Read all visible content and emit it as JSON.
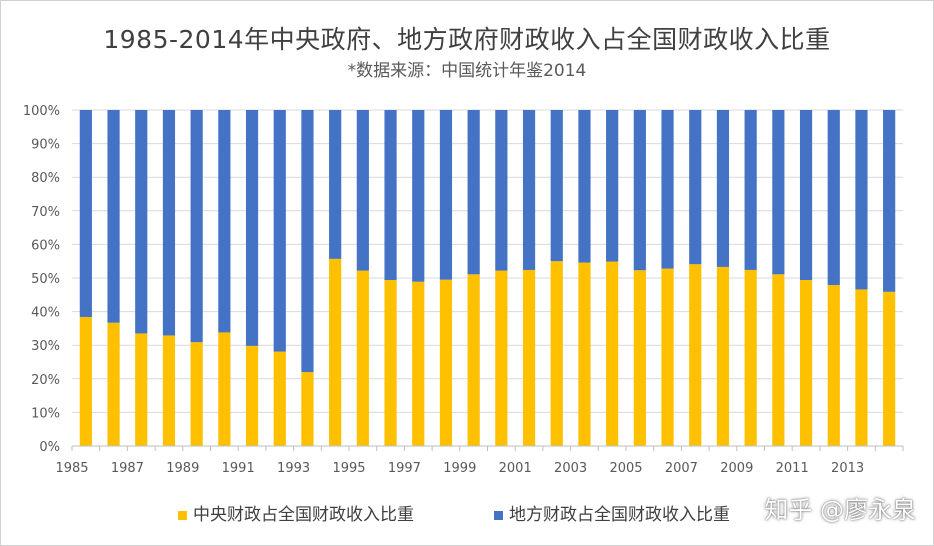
{
  "chart_data": {
    "type": "bar",
    "stacked": true,
    "title": "1985-2014年中央政府、地方政府财政收入占全国财政收入比重",
    "subtitle": "*数据来源：中国统计年鉴2014",
    "x": [
      1985,
      1986,
      1987,
      1988,
      1989,
      1990,
      1991,
      1992,
      1993,
      1994,
      1995,
      1996,
      1997,
      1998,
      1999,
      2000,
      2001,
      2002,
      2003,
      2004,
      2005,
      2006,
      2007,
      2008,
      2009,
      2010,
      2011,
      2012,
      2013,
      2014
    ],
    "x_tick_labels": [
      "1985",
      "1987",
      "1989",
      "1991",
      "1993",
      "1995",
      "1997",
      "1999",
      "2001",
      "2003",
      "2005",
      "2007",
      "2009",
      "2011",
      "2013"
    ],
    "y_tick_labels": [
      "0%",
      "10%",
      "20%",
      "30%",
      "40%",
      "50%",
      "60%",
      "70%",
      "80%",
      "90%",
      "100%"
    ],
    "ylim": [
      0,
      100
    ],
    "grid": true,
    "legend_position": "bottom",
    "series": [
      {
        "name": "中央财政占全国财政收入比重",
        "color": "#FFC000",
        "values": [
          38.4,
          36.7,
          33.5,
          32.9,
          30.9,
          33.8,
          29.8,
          28.1,
          22.0,
          55.7,
          52.2,
          49.4,
          48.9,
          49.5,
          51.1,
          52.2,
          52.4,
          55.0,
          54.6,
          54.9,
          52.3,
          52.8,
          54.1,
          53.3,
          52.4,
          51.1,
          49.4,
          47.9,
          46.6,
          45.9
        ]
      },
      {
        "name": "地方财政占全国财政收入比重",
        "color": "#4472C4",
        "values": [
          61.6,
          63.3,
          66.5,
          67.1,
          69.1,
          66.2,
          70.2,
          71.9,
          78.0,
          44.3,
          47.8,
          50.6,
          51.1,
          50.5,
          48.9,
          47.8,
          47.6,
          45.0,
          45.4,
          45.1,
          47.7,
          47.2,
          45.9,
          46.7,
          47.6,
          48.9,
          50.6,
          52.1,
          53.4,
          54.1
        ]
      }
    ]
  },
  "watermark": "知乎 @廖永泉"
}
